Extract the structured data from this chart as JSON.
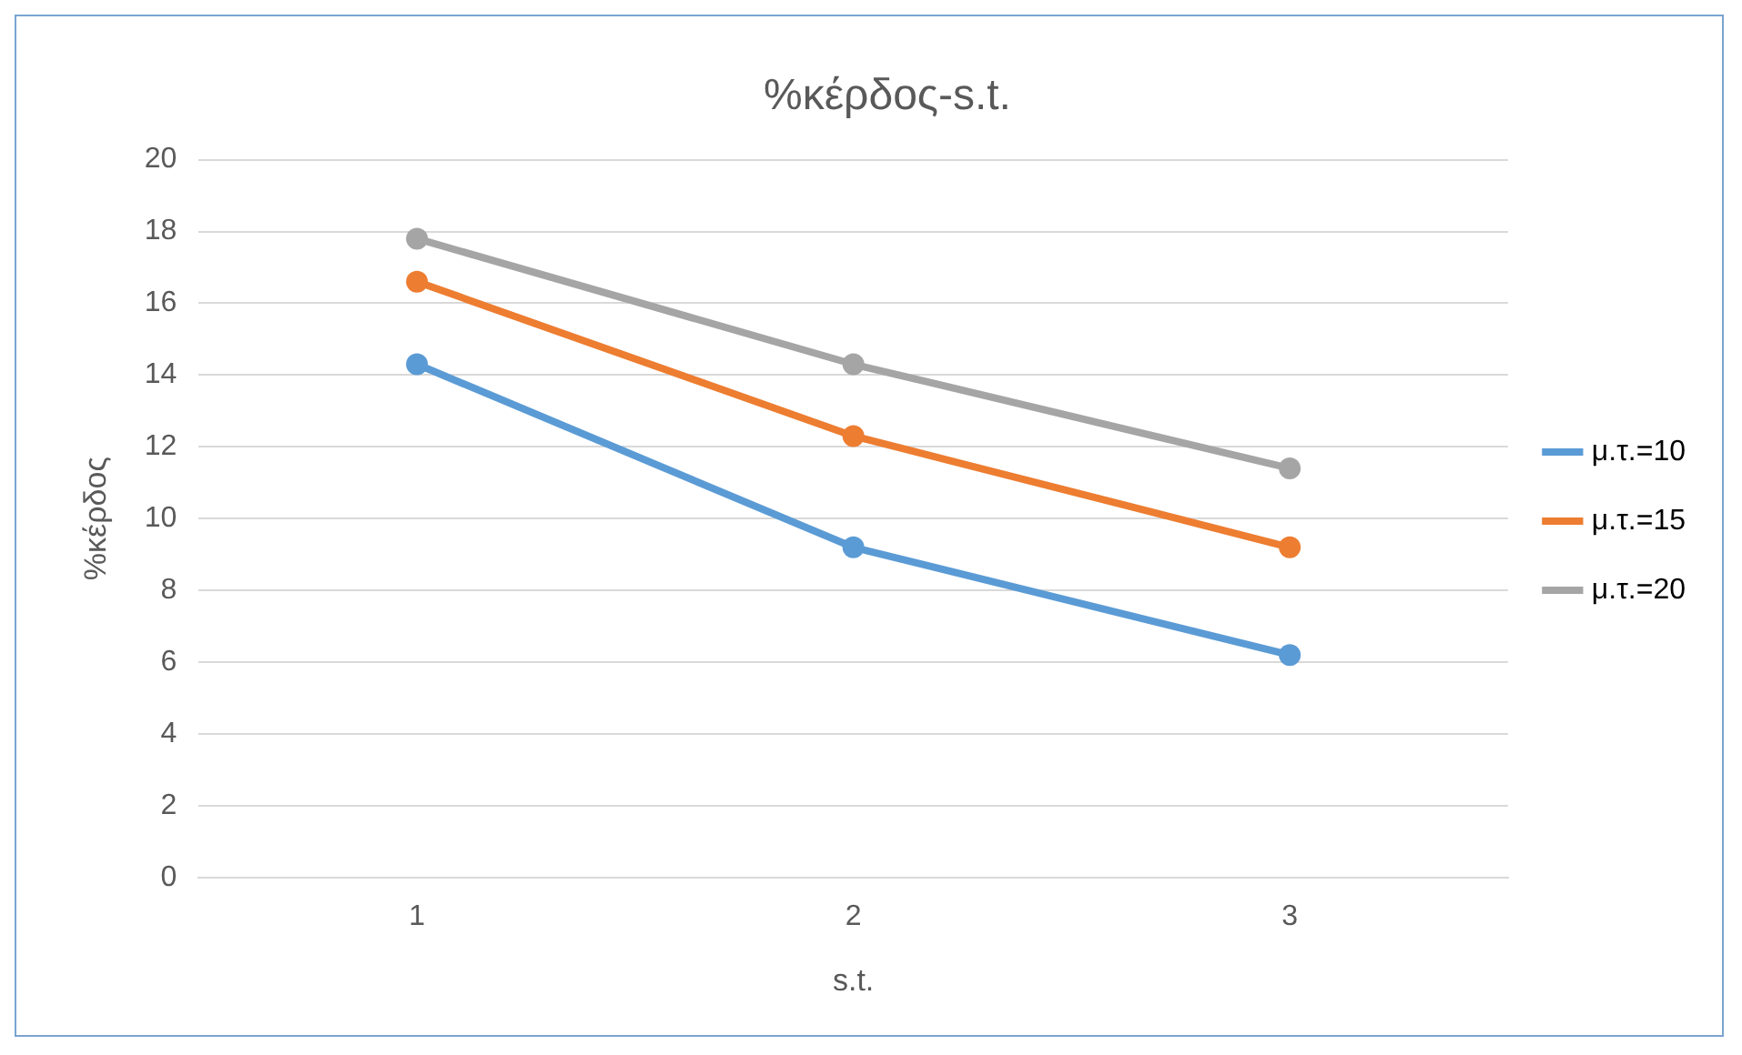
{
  "chart_data": {
    "type": "line",
    "title": "%κέρδος-s.t.",
    "xlabel": "s.t.",
    "ylabel": "%κέρδος",
    "categories": [
      "1",
      "2",
      "3"
    ],
    "series": [
      {
        "name": "μ.τ.=10",
        "color": "#5b9bd5",
        "values": [
          14.3,
          9.2,
          6.2
        ]
      },
      {
        "name": "μ.τ.=15",
        "color": "#ed7d31",
        "values": [
          16.6,
          12.3,
          9.2
        ]
      },
      {
        "name": "μ.τ.=20",
        "color": "#a5a5a5",
        "values": [
          17.8,
          14.3,
          11.4
        ]
      }
    ],
    "ylim": [
      0,
      20
    ],
    "yticks": [
      0,
      2,
      4,
      6,
      8,
      10,
      12,
      14,
      16,
      18,
      20
    ],
    "grid": "y",
    "legend": "right",
    "marker": "circle",
    "line_style": "solid"
  }
}
